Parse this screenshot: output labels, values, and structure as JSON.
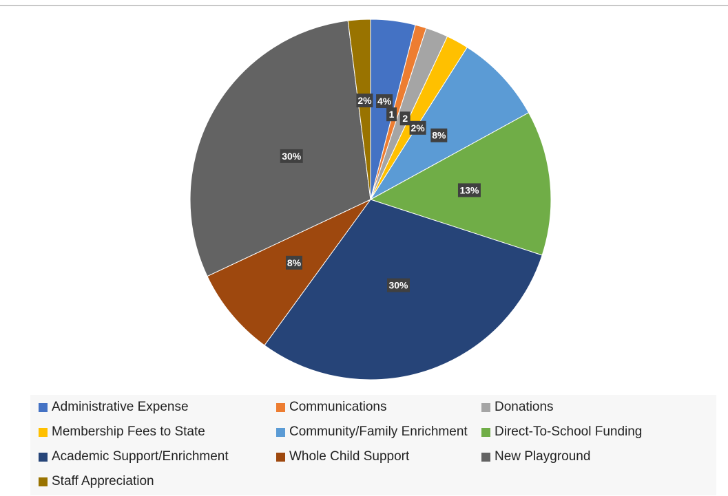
{
  "chart_data": {
    "type": "pie",
    "title": "",
    "slices": [
      {
        "label": "Administrative Expense",
        "value": 4,
        "data_label": "4%",
        "color": "#4472c4"
      },
      {
        "label": "Communications",
        "value": 1,
        "data_label": "1",
        "color": "#ed7d31"
      },
      {
        "label": "Donations",
        "value": 2,
        "data_label": "2",
        "color": "#a5a5a5"
      },
      {
        "label": "Membership Fees to State",
        "value": 2,
        "data_label": "2%",
        "color": "#ffc000"
      },
      {
        "label": "Community/Family Enrichment",
        "value": 8,
        "data_label": "8%",
        "color": "#5b9bd5"
      },
      {
        "label": "Direct-To-School Funding",
        "value": 13,
        "data_label": "13%",
        "color": "#70ad47"
      },
      {
        "label": "Academic Support/Enrichment",
        "value": 30,
        "data_label": "30%",
        "color": "#264478"
      },
      {
        "label": "Whole Child Support",
        "value": 8,
        "data_label": "8%",
        "color": "#9e480e"
      },
      {
        "label": "New Playground",
        "value": 30,
        "data_label": "30%",
        "color": "#636363"
      },
      {
        "label": "Staff Appreciation",
        "value": 2,
        "data_label": "2%",
        "color": "#997300"
      }
    ],
    "legend_position": "bottom"
  }
}
